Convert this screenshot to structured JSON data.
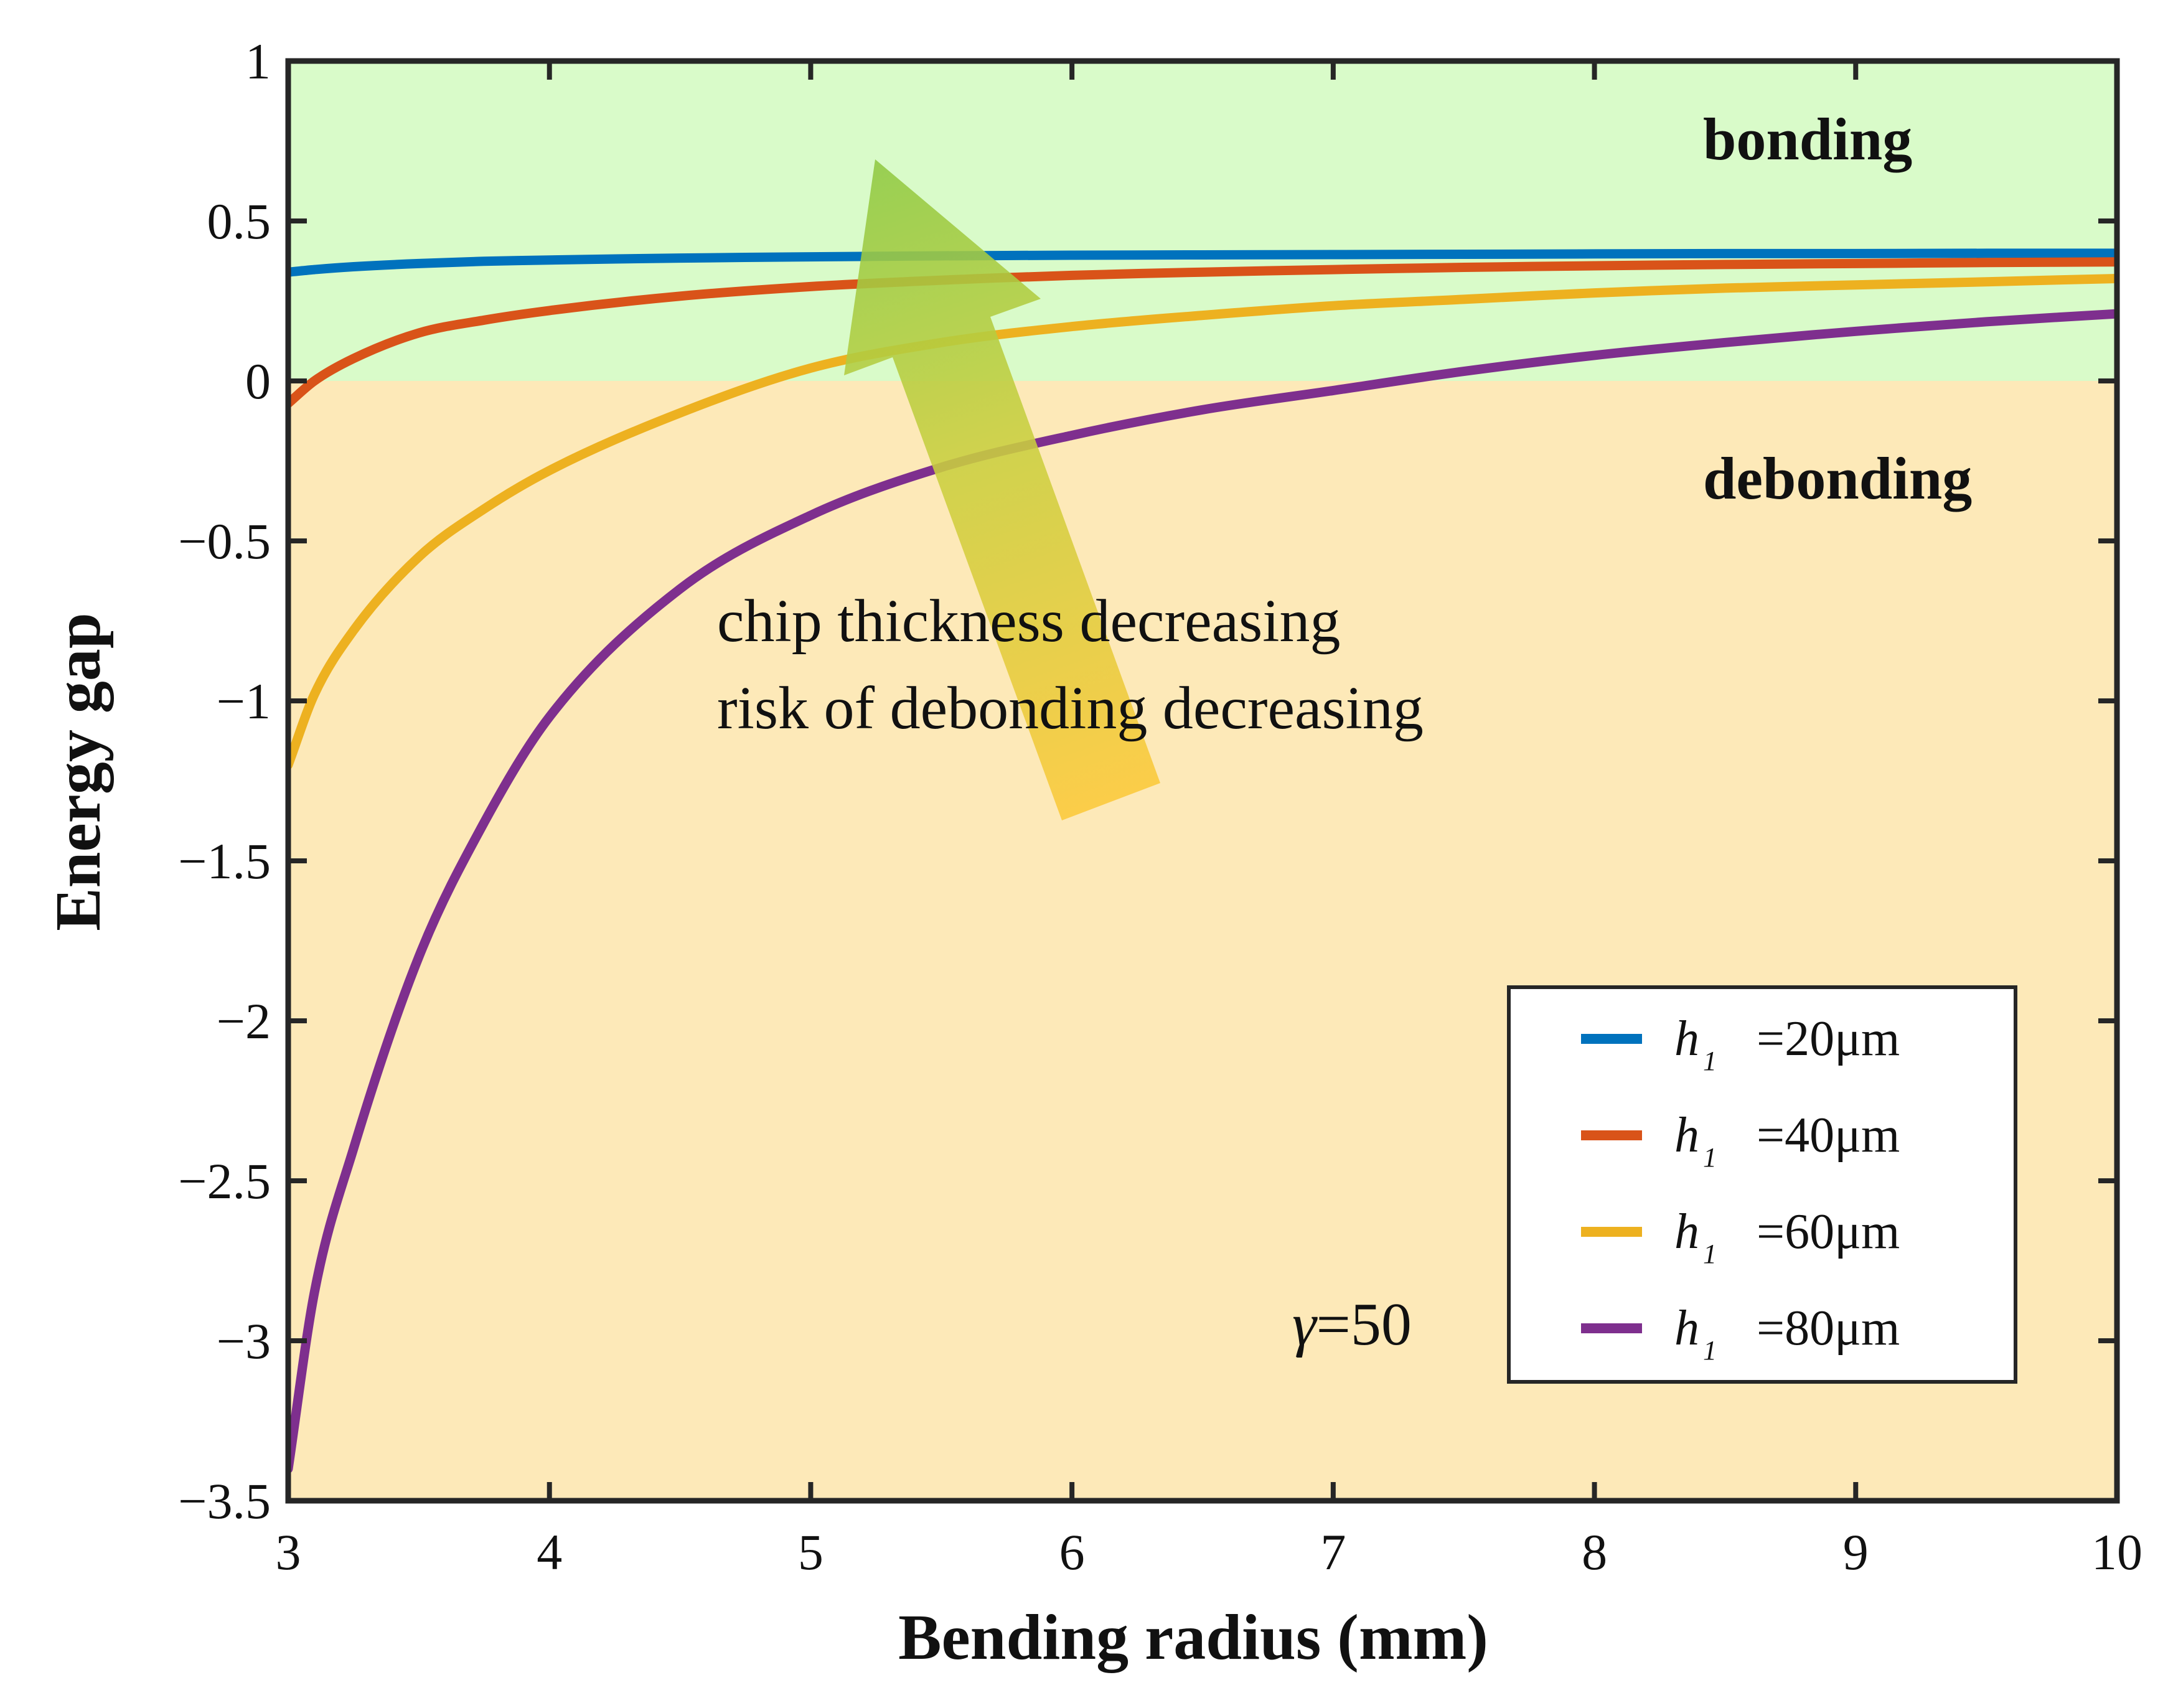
{
  "chart_data": {
    "type": "line",
    "title": "",
    "xlabel": "Bending radius (mm)",
    "ylabel": "Energy gap",
    "xlim": [
      3,
      10
    ],
    "ylim": [
      -3.5,
      1
    ],
    "xticks": [
      3,
      4,
      5,
      6,
      7,
      8,
      9,
      10
    ],
    "yticks": [
      1,
      0.5,
      0,
      -0.5,
      -1,
      -1.5,
      -2,
      -2.5,
      -3,
      -3.5
    ],
    "xtick_labels": [
      "3",
      "4",
      "5",
      "6",
      "7",
      "8",
      "9",
      "10"
    ],
    "ytick_labels": [
      "1",
      "0.5",
      "0",
      "−0.5",
      "−1",
      "−1.5",
      "−2",
      "−2.5",
      "−3",
      "−3.5"
    ],
    "grid": false,
    "legend_position": "bottom-right",
    "regions": [
      {
        "name": "bonding",
        "label": "bonding",
        "y_range": [
          0,
          1
        ],
        "color": "#d9fbc9"
      },
      {
        "name": "debonding",
        "label": "debonding",
        "y_range": [
          -3.5,
          0
        ],
        "color": "#fde9b8"
      }
    ],
    "annotations": {
      "arrow_line1": "chip thickness decreasing",
      "arrow_line2": "risk of debonding decreasing",
      "gamma_symbol": "γ",
      "gamma_value": "=50"
    },
    "series": [
      {
        "name": "h1 =20μm",
        "var": "h",
        "sub": "1",
        "suffix": "=20μm",
        "color": "#0072bd",
        "x": [
          3.0,
          3.1,
          3.25,
          3.5,
          3.75,
          4.0,
          4.5,
          5.0,
          5.5,
          6.0,
          6.5,
          7.0,
          7.5,
          8.0,
          8.5,
          9.0,
          9.5,
          10.0
        ],
        "values": [
          0.34,
          0.348,
          0.357,
          0.367,
          0.374,
          0.378,
          0.384,
          0.388,
          0.391,
          0.393,
          0.394,
          0.395,
          0.396,
          0.397,
          0.398,
          0.398,
          0.399,
          0.399
        ]
      },
      {
        "name": "h1 =40μm",
        "var": "h",
        "sub": "1",
        "suffix": "=40μm",
        "color": "#d95319",
        "x": [
          3.0,
          3.1,
          3.25,
          3.5,
          3.75,
          4.0,
          4.5,
          5.0,
          5.5,
          6.0,
          6.5,
          7.0,
          7.5,
          8.0,
          8.5,
          9.0,
          9.5,
          10.0
        ],
        "values": [
          -0.07,
          0.0,
          0.07,
          0.15,
          0.19,
          0.22,
          0.265,
          0.295,
          0.315,
          0.33,
          0.34,
          0.348,
          0.355,
          0.36,
          0.364,
          0.367,
          0.37,
          0.372
        ]
      },
      {
        "name": "h1 =60μm",
        "var": "h",
        "sub": "1",
        "suffix": "=60μm",
        "color": "#edb120",
        "x": [
          3.0,
          3.1,
          3.25,
          3.5,
          3.75,
          4.0,
          4.5,
          5.0,
          5.5,
          6.0,
          6.5,
          7.0,
          7.5,
          8.0,
          8.5,
          9.0,
          9.5,
          10.0
        ],
        "values": [
          -1.2,
          -0.98,
          -0.78,
          -0.55,
          -0.4,
          -0.28,
          -0.1,
          0.04,
          0.12,
          0.17,
          0.205,
          0.235,
          0.255,
          0.275,
          0.29,
          0.3,
          0.31,
          0.32
        ]
      },
      {
        "name": "h1 =80μm",
        "var": "h",
        "sub": "1",
        "suffix": "=80μm",
        "color": "#7e2f8e",
        "x": [
          3.0,
          3.1,
          3.25,
          3.5,
          3.75,
          4.0,
          4.5,
          5.0,
          5.5,
          6.0,
          6.5,
          7.0,
          7.5,
          8.0,
          8.5,
          9.0,
          9.5,
          10.0
        ],
        "values": [
          -3.4,
          -2.85,
          -2.4,
          -1.8,
          -1.38,
          -1.05,
          -0.65,
          -0.42,
          -0.27,
          -0.17,
          -0.09,
          -0.03,
          0.03,
          0.08,
          0.12,
          0.155,
          0.185,
          0.21
        ]
      }
    ]
  }
}
